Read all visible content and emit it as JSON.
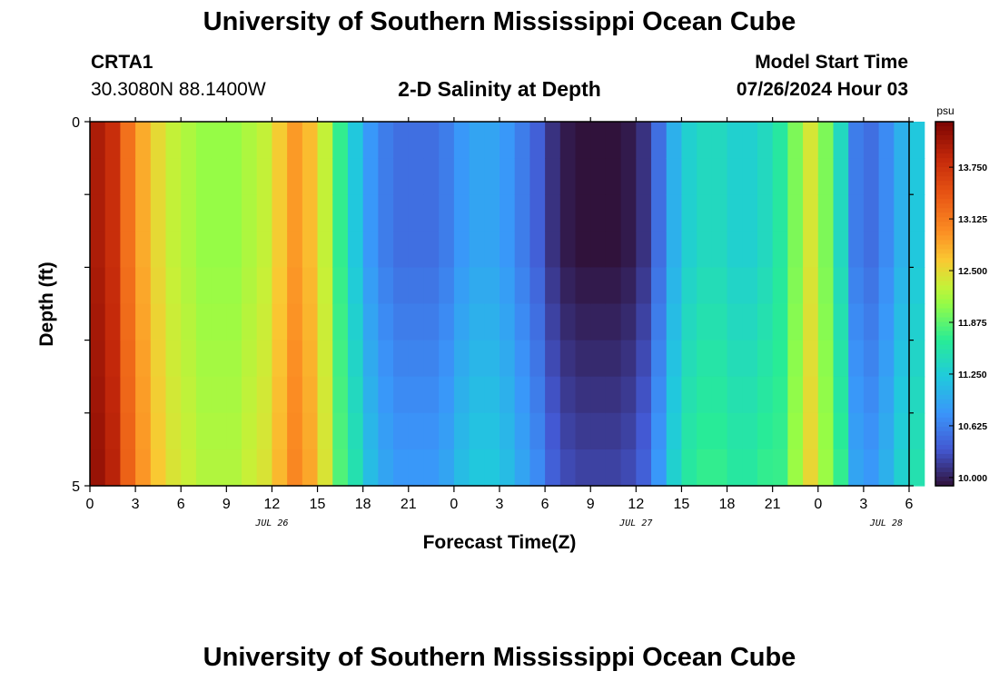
{
  "page": {
    "title": "University of Southern Mississippi Ocean Cube",
    "station": "CRTA1",
    "coords": "30.3080N  88.1400W",
    "plot_title": "2-D Salinity at Depth",
    "model_label": "Model Start Time",
    "model_time": "07/26/2024 Hour 03",
    "footer_title": "University of Southern Mississippi Ocean Cube"
  },
  "chart_data": {
    "type": "heatmap",
    "title": "2-D Salinity at Depth",
    "xlabel": "Forecast Time(Z)",
    "ylabel": "Depth (ft)",
    "x_tick_labels": [
      "0",
      "3",
      "6",
      "9",
      "12",
      "15",
      "18",
      "21",
      "0",
      "3",
      "6",
      "9",
      "12",
      "15",
      "18",
      "21",
      "0",
      "3",
      "6"
    ],
    "x_range_hours": [
      0,
      54
    ],
    "date_labels": [
      {
        "label": "JUL 26",
        "at_hour": 12
      },
      {
        "label": "JUL 27",
        "at_hour": 36
      },
      {
        "label": "JUL 28",
        "at_hour": 52.5
      }
    ],
    "y_tick_labels": [
      "0",
      "5"
    ],
    "ylim": [
      0,
      5
    ],
    "colorbar": {
      "unit": "psu",
      "range": [
        9.9,
        14.3
      ],
      "tick_values": [
        10.0,
        10.625,
        11.25,
        11.875,
        12.5,
        13.125,
        13.75
      ],
      "tick_labels": [
        "10.000",
        "10.625",
        "11.250",
        "11.875",
        "12.500",
        "13.125",
        "13.750"
      ]
    },
    "time_step_hours": 1,
    "depth_levels_ft": [
      0.25,
      0.75,
      1.25,
      1.75,
      2.25,
      2.75,
      3.25,
      3.75,
      4.25,
      4.75
    ],
    "surface_salinity_psu": [
      14.0,
      13.8,
      13.2,
      12.8,
      12.5,
      12.3,
      12.2,
      12.1,
      12.1,
      12.1,
      12.2,
      12.3,
      12.6,
      12.9,
      12.7,
      12.3,
      11.7,
      11.2,
      10.8,
      10.6,
      10.5,
      10.5,
      10.5,
      10.6,
      10.8,
      10.9,
      10.9,
      10.8,
      10.6,
      10.4,
      10.1,
      9.95,
      9.9,
      9.9,
      9.9,
      9.95,
      10.1,
      10.5,
      11.0,
      11.3,
      11.4,
      11.4,
      11.3,
      11.3,
      11.4,
      11.6,
      12.0,
      12.4,
      12.0,
      11.4,
      10.6,
      10.5,
      10.7,
      11.0,
      11.2
    ],
    "depth_increment_psu": [
      0.0,
      0.0,
      0.0,
      0.0,
      0.05,
      0.1,
      0.15,
      0.2,
      0.25,
      0.3
    ]
  }
}
